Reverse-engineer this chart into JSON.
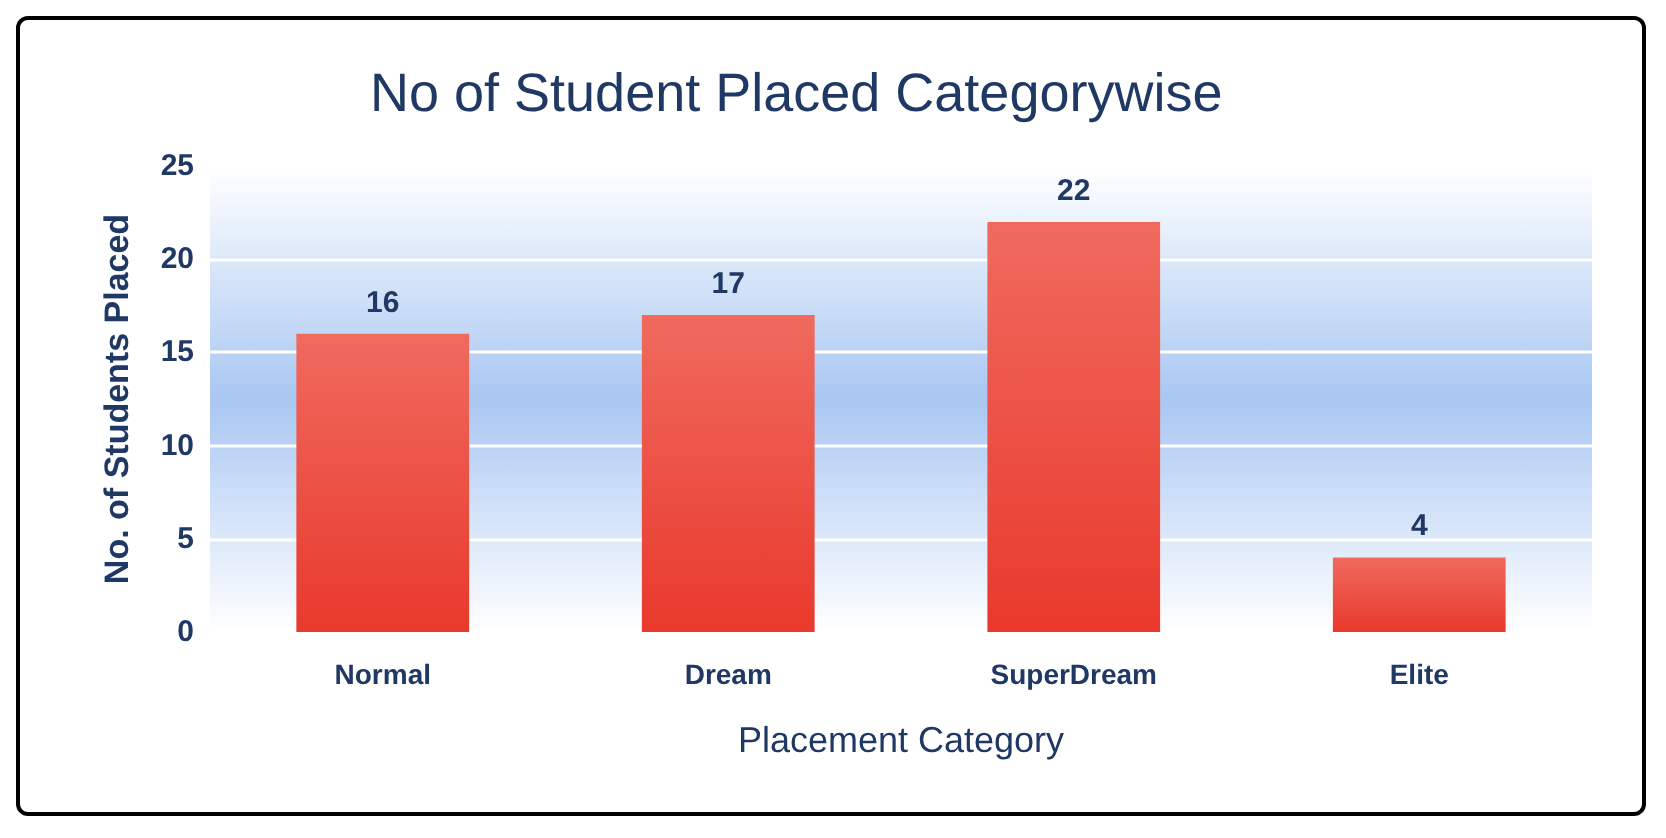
{
  "chart_data": {
    "type": "bar",
    "title": "No of Student Placed Categorywise",
    "xlabel": "Placement Category",
    "ylabel": "No. of Students Placed",
    "categories": [
      "Normal",
      "Dream",
      "SuperDream",
      "Elite"
    ],
    "values": [
      16,
      17,
      22,
      4
    ],
    "color": "#e8392c",
    "ylim": [
      0,
      25
    ],
    "yticks": [
      0,
      5,
      10,
      15,
      20,
      25
    ],
    "grid": "y",
    "data_labels": true
  }
}
